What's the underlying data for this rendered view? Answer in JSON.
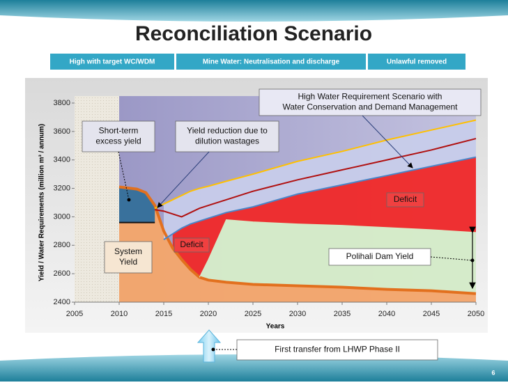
{
  "slide": {
    "title": "Reconciliation Scenario",
    "tabs": [
      "High with target WC/WDM",
      "Mine Water: Neutralisation and discharge",
      "Unlawful removed"
    ],
    "page_number": "6"
  },
  "chart_data": {
    "type": "line",
    "xlabel": "Years",
    "ylabel": "Yield / Water Requirements (million m³ / annum)",
    "x": [
      2010,
      2012,
      2013,
      2014,
      2015,
      2016,
      2017,
      2018,
      2019,
      2020,
      2022,
      2025,
      2030,
      2035,
      2040,
      2045,
      2050
    ],
    "series": [
      {
        "color": "#E2701E",
        "fill": "#F5A66A",
        "width": 4,
        "values": [
          3210,
          3195,
          3170,
          3080,
          2900,
          2780,
          2700,
          2630,
          2575,
          2555,
          2540,
          2525,
          2515,
          2505,
          2490,
          2480,
          2460
        ]
      },
      {
        "color": "#FFC000",
        "fill": "#C7CCEA",
        "width": 2,
        "values": [
          null,
          null,
          null,
          3060,
          3090,
          3120,
          3150,
          3180,
          3200,
          3215,
          3250,
          3300,
          3390,
          3460,
          3540,
          3610,
          3680
        ]
      },
      {
        "color": "#B01010",
        "width": 2,
        "values": [
          null,
          null,
          null,
          3050,
          3040,
          3020,
          3000,
          3030,
          3060,
          3080,
          3120,
          3180,
          3260,
          3330,
          3400,
          3470,
          3550
        ]
      },
      {
        "color": "#4A86C8",
        "fill": "#F02828",
        "width": 2,
        "values": [
          null,
          null,
          null,
          null,
          2840,
          2880,
          2920,
          2950,
          2970,
          2990,
          3030,
          3070,
          3160,
          3225,
          3290,
          3355,
          3420
        ]
      },
      {
        "color": "#D6EDC8",
        "fill": "#D6EDC8",
        "width": 1,
        "values": [
          null,
          null,
          null,
          null,
          null,
          null,
          null,
          null,
          2575,
          2700,
          2980,
          2965,
          2950,
          2940,
          2925,
          2910,
          2890
        ]
      },
      {
        "color": "#111111",
        "fill": "#2E6E9E",
        "width": 2,
        "values": [
          2960,
          2960,
          2960,
          2960,
          null,
          null,
          null,
          null,
          null,
          null,
          null,
          null,
          null,
          null,
          null,
          null,
          null
        ]
      }
    ],
    "xlim": [
      2005,
      2050
    ],
    "xticks": [
      2005,
      2010,
      2015,
      2020,
      2025,
      2030,
      2035,
      2040,
      2045,
      2050
    ],
    "ylim": [
      2400,
      3800
    ],
    "yticks": [
      2400,
      2600,
      2800,
      3000,
      3200,
      3400,
      3600,
      3800
    ],
    "annotations": [
      {
        "lines": [
          "High Water Requirement Scenario with",
          "Water Conservation and Demand Management"
        ]
      },
      {
        "lines": [
          "Short-term",
          "excess yield"
        ]
      },
      {
        "lines": [
          "Yield reduction due to",
          "dilution wastages"
        ]
      },
      {
        "lines": [
          "Deficit"
        ]
      },
      {
        "lines": [
          "Deficit"
        ]
      },
      {
        "lines": [
          "System",
          "Yield"
        ]
      },
      {
        "lines": [
          "Polihali Dam Yield"
        ]
      },
      {
        "lines": [
          "First transfer from LHWP Phase II"
        ]
      }
    ]
  }
}
